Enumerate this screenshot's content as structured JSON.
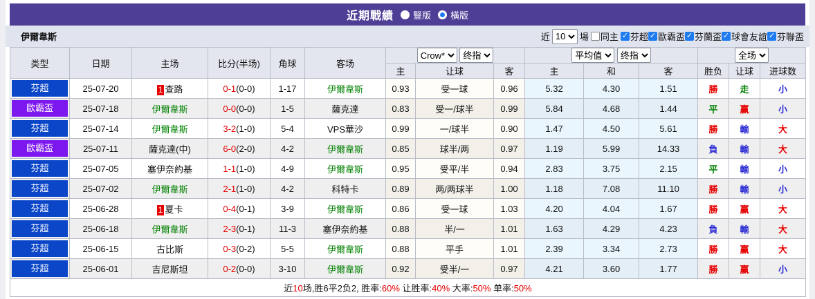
{
  "title_bar": {
    "title": "近期戰績",
    "radios": [
      {
        "label": "豎版",
        "checked": false
      },
      {
        "label": "橫版",
        "checked": true
      }
    ]
  },
  "filter_bar": {
    "near_label": "近",
    "games_value": "10",
    "games_suffix": "場",
    "team": "伊爾韋斯",
    "same_home": {
      "label": "同主",
      "checked": false
    },
    "leagues": [
      {
        "label": "芬超",
        "checked": true
      },
      {
        "label": "歐霸盃",
        "checked": true
      },
      {
        "label": "芬蘭盃",
        "checked": true
      },
      {
        "label": "球會友誼",
        "checked": true
      },
      {
        "label": "芬聯盃",
        "checked": true
      }
    ]
  },
  "table": {
    "headers": {
      "type": "类型",
      "date": "日期",
      "home": "主场",
      "score": "比分(半场)",
      "corner": "角球",
      "away": "客场",
      "crow_cols": [
        "主",
        "让球",
        "客"
      ],
      "avg_cols": [
        "主",
        "和",
        "客"
      ],
      "result_cols": [
        "胜负",
        "让球",
        "进球数"
      ],
      "selects": {
        "crow": "Crow*",
        "crow_ref": "终指",
        "avg": "平均值",
        "avg_ref": "终指",
        "scope": "全场"
      }
    },
    "rows": [
      {
        "league": "芬超",
        "date": "25-07-20",
        "home": {
          "rank": "1",
          "name": "查路",
          "self": false
        },
        "score": "0-1",
        "half": "(0-0)",
        "corner": "1-17",
        "away": {
          "name": "伊爾韋斯",
          "self": true
        },
        "crow": [
          "0.93",
          "受一球",
          "0.96"
        ],
        "avg": [
          "5.32",
          "4.30",
          "1.51"
        ],
        "result": [
          "勝",
          "走",
          "小"
        ]
      },
      {
        "league": "歐霸盃",
        "date": "25-07-18",
        "home": {
          "rank": "",
          "name": "伊爾韋斯",
          "self": true
        },
        "score": "0-0",
        "half": "(0-0)",
        "corner": "1-5",
        "away": {
          "name": "薩克達",
          "self": false
        },
        "crow": [
          "0.83",
          "受一/球半",
          "0.99"
        ],
        "avg": [
          "5.84",
          "4.68",
          "1.44"
        ],
        "result": [
          "平",
          "赢",
          "小"
        ]
      },
      {
        "league": "芬超",
        "date": "25-07-14",
        "home": {
          "rank": "",
          "name": "伊爾韋斯",
          "self": true
        },
        "score": "3-2",
        "half": "(1-0)",
        "corner": "5-4",
        "away": {
          "name": "VPS華沙",
          "self": false
        },
        "crow": [
          "0.99",
          "一/球半",
          "0.90"
        ],
        "avg": [
          "1.47",
          "4.50",
          "5.61"
        ],
        "result": [
          "勝",
          "輸",
          "大"
        ]
      },
      {
        "league": "歐霸盃",
        "date": "25-07-11",
        "home": {
          "rank": "",
          "name": "薩克達(中)",
          "self": false
        },
        "score": "6-0",
        "half": "(2-0)",
        "corner": "4-2",
        "away": {
          "name": "伊爾韋斯",
          "self": true
        },
        "crow": [
          "0.85",
          "球半/两",
          "0.97"
        ],
        "avg": [
          "1.19",
          "5.99",
          "14.33"
        ],
        "result": [
          "負",
          "輸",
          "大"
        ]
      },
      {
        "league": "芬超",
        "date": "25-07-05",
        "home": {
          "rank": "",
          "name": "塞伊奈約基",
          "self": false
        },
        "score": "1-1",
        "half": "(1-0)",
        "corner": "4-9",
        "away": {
          "name": "伊爾韋斯",
          "self": true
        },
        "crow": [
          "0.95",
          "受平/半",
          "0.94"
        ],
        "avg": [
          "2.83",
          "3.75",
          "2.15"
        ],
        "result": [
          "平",
          "輸",
          "小"
        ]
      },
      {
        "league": "芬超",
        "date": "25-07-02",
        "home": {
          "rank": "",
          "name": "伊爾韋斯",
          "self": true
        },
        "score": "2-1",
        "half": "(1-0)",
        "corner": "4-2",
        "away": {
          "name": "科特卡",
          "self": false
        },
        "crow": [
          "0.89",
          "两/两球半",
          "1.00"
        ],
        "avg": [
          "1.18",
          "7.08",
          "11.10"
        ],
        "result": [
          "勝",
          "輸",
          "小"
        ]
      },
      {
        "league": "芬超",
        "date": "25-06-28",
        "home": {
          "rank": "1",
          "name": "夏卡",
          "self": false
        },
        "score": "0-4",
        "half": "(0-1)",
        "corner": "3-9",
        "away": {
          "name": "伊爾韋斯",
          "self": true
        },
        "crow": [
          "0.86",
          "受一球",
          "1.03"
        ],
        "avg": [
          "4.20",
          "4.04",
          "1.67"
        ],
        "result": [
          "勝",
          "赢",
          "大"
        ]
      },
      {
        "league": "芬超",
        "date": "25-06-18",
        "home": {
          "rank": "",
          "name": "伊爾韋斯",
          "self": true
        },
        "score": "2-3",
        "half": "(0-1)",
        "corner": "11-3",
        "away": {
          "name": "塞伊奈約基",
          "self": false
        },
        "crow": [
          "0.88",
          "半/一",
          "1.01"
        ],
        "avg": [
          "1.63",
          "4.29",
          "4.23"
        ],
        "result": [
          "負",
          "輸",
          "大"
        ]
      },
      {
        "league": "芬超",
        "date": "25-06-15",
        "home": {
          "rank": "",
          "name": "古比斯",
          "self": false
        },
        "score": "0-3",
        "half": "(0-2)",
        "corner": "5-5",
        "away": {
          "name": "伊爾韋斯",
          "self": true
        },
        "crow": [
          "0.88",
          "平手",
          "1.01"
        ],
        "avg": [
          "2.39",
          "3.34",
          "2.73"
        ],
        "result": [
          "勝",
          "赢",
          "大"
        ]
      },
      {
        "league": "芬超",
        "date": "25-06-01",
        "home": {
          "rank": "",
          "name": "吉尼斯坦",
          "self": false
        },
        "score": "0-2",
        "half": "(0-0)",
        "corner": "3-10",
        "away": {
          "name": "伊爾韋斯",
          "self": true
        },
        "crow": [
          "0.92",
          "受半/一",
          "0.97"
        ],
        "avg": [
          "4.21",
          "3.60",
          "1.77"
        ],
        "result": [
          "勝",
          "赢",
          "小"
        ]
      }
    ],
    "summary": [
      {
        "text": "近",
        "red": false
      },
      {
        "text": "10",
        "red": true
      },
      {
        "text": "场,胜6平2负2, 胜率:",
        "red": false
      },
      {
        "text": "60%",
        "red": true
      },
      {
        "text": " 让胜率:",
        "red": false
      },
      {
        "text": "40%",
        "red": true
      },
      {
        "text": " 大率:",
        "red": false
      },
      {
        "text": "50%",
        "red": true
      },
      {
        "text": " 单率:",
        "red": false
      },
      {
        "text": "50%",
        "red": true
      }
    ]
  },
  "colors": {
    "league_badges": {
      "芬超": "#0b46c8",
      "歐霸盃": "#7d17ef"
    },
    "result_map": {
      "勝": "#e60000",
      "平": "#008000",
      "負": "#2a2ad4",
      "走": "#008000",
      "赢": "#e60000",
      "輸": "#2a2ad4",
      "大": "#e60000",
      "小": "#2a2ad4"
    },
    "self_team": "#008000",
    "score": "#e60000",
    "title_bar_bg": "#4f3e96",
    "check_blue": "#1e7bf0"
  }
}
